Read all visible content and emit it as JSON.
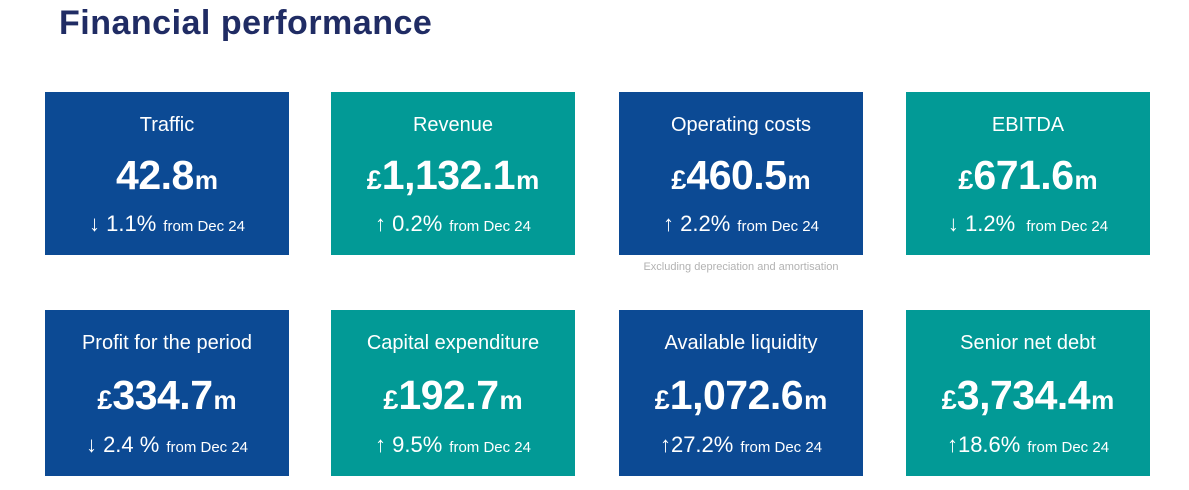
{
  "page": {
    "title": "Financial performance",
    "title_color": "#202C64",
    "background": "#FFFFFF"
  },
  "colors": {
    "blue": "#0C4A94",
    "teal": "#029A96",
    "footnote_gray": "#B2B2B2",
    "card_text": "#FFFFFF"
  },
  "cards": [
    {
      "label": "Traffic",
      "currency": "",
      "value": "42.8",
      "unit": "m",
      "change": "↓ 1.1%",
      "period": "from Dec 24",
      "theme": "blue",
      "footnote": ""
    },
    {
      "label": "Revenue",
      "currency": "£",
      "value": "1,132.1",
      "unit": "m",
      "change": "↑ 0.2%",
      "period": "from Dec 24",
      "theme": "teal",
      "footnote": ""
    },
    {
      "label": "Operating costs",
      "currency": "£",
      "value": "460.5",
      "unit": "m",
      "change": "↑ 2.2%",
      "period": "from Dec 24",
      "theme": "blue",
      "footnote": "Excluding depreciation and amortisation"
    },
    {
      "label": "EBITDA",
      "currency": "£",
      "value": "671.6",
      "unit": "m",
      "change": "↓ 1.2%",
      "period": " from Dec 24",
      "theme": "teal",
      "footnote": ""
    },
    {
      "label": "Profit for the period",
      "currency": "£",
      "value": "334.7",
      "unit": "m",
      "change": "↓ 2.4 %",
      "period": "from Dec 24",
      "theme": "blue",
      "footnote": ""
    },
    {
      "label": "Capital expenditure",
      "currency": "£",
      "value": "192.7",
      "unit": "m",
      "change": "↑ 9.5%",
      "period": "from Dec 24",
      "theme": "teal",
      "footnote": ""
    },
    {
      "label": "Available liquidity",
      "currency": "£",
      "value": "1,072.6",
      "unit": "m",
      "change": "↑27.2%",
      "period": "from Dec 24",
      "theme": "blue",
      "footnote": ""
    },
    {
      "label": "Senior net debt",
      "currency": "£",
      "value": "3,734.4",
      "unit": "m",
      "change": "↑18.6%",
      "period": "from Dec 24",
      "theme": "teal",
      "footnote": ""
    }
  ],
  "chart_data": {
    "type": "table",
    "title": "Financial performance",
    "columns": [
      "metric",
      "value",
      "unit",
      "change_pct_vs_Dec_24",
      "direction"
    ],
    "rows": [
      {
        "metric": "Traffic",
        "value": 42.8,
        "unit": "m",
        "change_pct_vs_Dec_24": 1.1,
        "direction": "down"
      },
      {
        "metric": "Revenue",
        "value": 1132.1,
        "unit": "£m",
        "change_pct_vs_Dec_24": 0.2,
        "direction": "up"
      },
      {
        "metric": "Operating costs",
        "value": 460.5,
        "unit": "£m",
        "change_pct_vs_Dec_24": 2.2,
        "direction": "up",
        "note": "Excluding depreciation and amortisation"
      },
      {
        "metric": "EBITDA",
        "value": 671.6,
        "unit": "£m",
        "change_pct_vs_Dec_24": 1.2,
        "direction": "down"
      },
      {
        "metric": "Profit for the period",
        "value": 334.7,
        "unit": "£m",
        "change_pct_vs_Dec_24": 2.4,
        "direction": "down"
      },
      {
        "metric": "Capital expenditure",
        "value": 192.7,
        "unit": "£m",
        "change_pct_vs_Dec_24": 9.5,
        "direction": "up"
      },
      {
        "metric": "Available liquidity",
        "value": 1072.6,
        "unit": "£m",
        "change_pct_vs_Dec_24": 27.2,
        "direction": "up"
      },
      {
        "metric": "Senior net debt",
        "value": 3734.4,
        "unit": "£m",
        "change_pct_vs_Dec_24": 18.6,
        "direction": "up"
      }
    ]
  }
}
